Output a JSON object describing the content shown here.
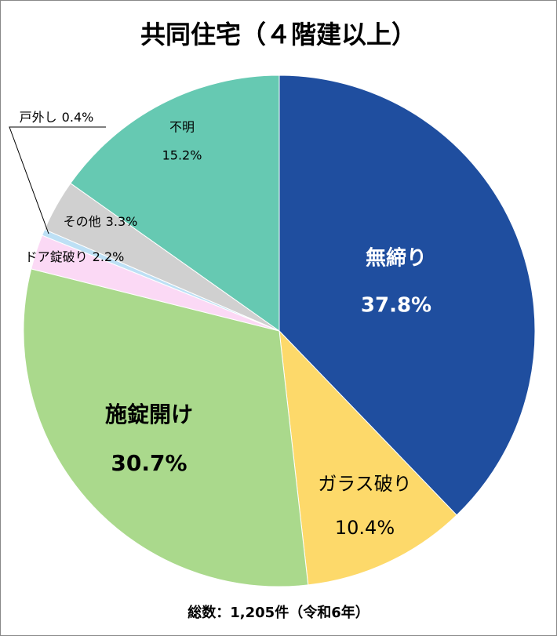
{
  "chart_data": {
    "type": "pie",
    "title": "共同住宅（４階建以上）",
    "categories": [
      "無締り",
      "ガラス破り",
      "施錠開け",
      "ドア錠破り",
      "戸外し",
      "その他",
      "不明"
    ],
    "values": [
      37.8,
      10.4,
      30.7,
      2.2,
      0.4,
      3.3,
      15.2
    ],
    "value_labels": [
      "37.8%",
      "10.4%",
      "30.7%",
      "2.2%",
      "0.4%",
      "3.3%",
      "15.2%"
    ],
    "colors": [
      "#1f4e9f",
      "#fdd96a",
      "#aad98c",
      "#fbd9f5",
      "#bde0f5",
      "#d0d0d0",
      "#66c9b2"
    ],
    "annotation": "総数：1,205件（令和6年）"
  }
}
